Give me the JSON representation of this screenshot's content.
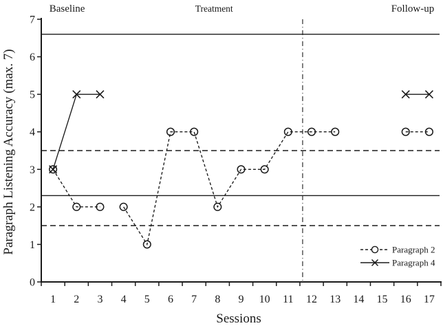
{
  "page": {
    "background": "#ffffff",
    "ink_color": "#1a1a1a"
  },
  "chart_data": {
    "type": "line",
    "title": "",
    "xlabel": "Sessions",
    "ylabel": "Paragraph Listening Accuracy (max. 7)",
    "ylim": [
      0,
      7
    ],
    "y_ticks": [
      0,
      1,
      2,
      3,
      4,
      5,
      6,
      7
    ],
    "x_ticks": [
      1,
      2,
      3,
      4,
      5,
      6,
      7,
      8,
      9,
      10,
      11,
      12,
      13,
      14,
      15,
      16,
      17
    ],
    "grid": "off",
    "phase_labels": [
      {
        "label": "Baseline",
        "center_session": 1.6
      },
      {
        "label": "Treatment",
        "center_session": 7.85
      },
      {
        "label": "Follow-up",
        "center_session": 16.3
      }
    ],
    "phase_change_line": {
      "after_session": 11,
      "style": "dash-dot"
    },
    "reference_lines": [
      {
        "value": 6.6,
        "style": "solid"
      },
      {
        "value": 3.5,
        "style": "dashed"
      },
      {
        "value": 2.3,
        "style": "solid"
      },
      {
        "value": 1.5,
        "style": "dashed"
      }
    ],
    "series": [
      {
        "name": "Paragraph 2",
        "marker": "circle",
        "line_style": "dashed",
        "segments": [
          {
            "sessions": [
              1,
              2,
              3
            ],
            "values": [
              3,
              2,
              2
            ]
          },
          {
            "sessions": [
              4,
              5,
              6,
              7,
              8,
              9,
              10,
              11,
              12,
              13
            ],
            "values": [
              2,
              1,
              4,
              4,
              2,
              3,
              3,
              4,
              4,
              4
            ]
          },
          {
            "sessions": [
              16,
              17
            ],
            "values": [
              4,
              4
            ]
          }
        ]
      },
      {
        "name": "Paragraph 4",
        "marker": "x",
        "line_style": "solid",
        "segments": [
          {
            "sessions": [
              1,
              2,
              3
            ],
            "values": [
              3,
              5,
              5
            ]
          },
          {
            "sessions": [
              16,
              17
            ],
            "values": [
              5,
              5
            ]
          }
        ]
      }
    ],
    "legend": {
      "position": "lower-right-inside",
      "entries": [
        "Paragraph 2",
        "Paragraph 4"
      ]
    }
  }
}
